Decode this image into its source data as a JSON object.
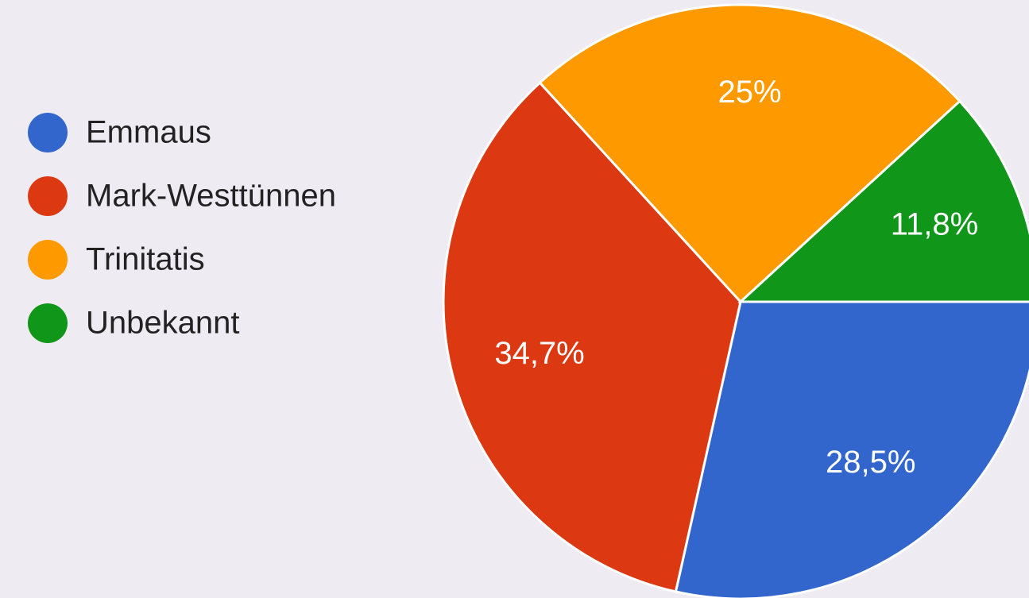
{
  "chart_data": {
    "type": "pie",
    "categories": [
      "Emmaus",
      "Mark-Westtünnen",
      "Trinitatis",
      "Unbekannt"
    ],
    "values": [
      28.5,
      34.7,
      25,
      11.8
    ],
    "value_labels": [
      "28,5%",
      "34,7%",
      "25%",
      "11,8%"
    ],
    "colors": [
      "#3366cc",
      "#dc3912",
      "#ff9900",
      "#109618"
    ],
    "legend": "left"
  }
}
